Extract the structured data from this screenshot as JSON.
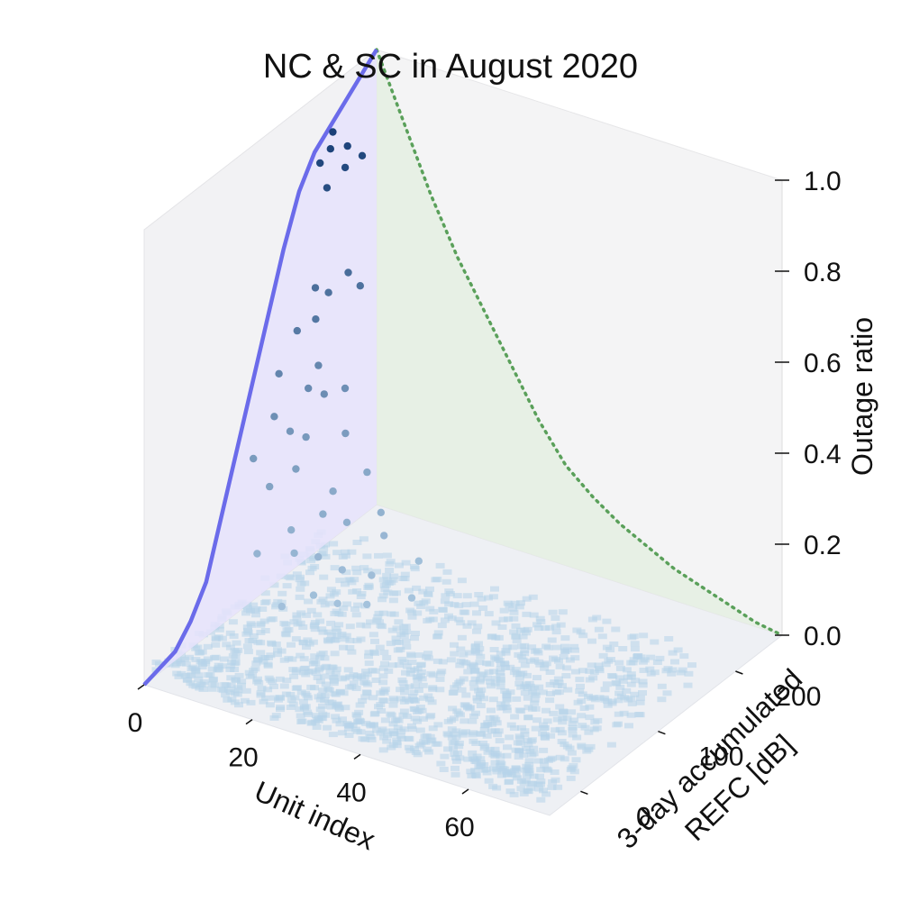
{
  "chart_data": {
    "type": "scatter",
    "projection": "3d",
    "title": "NC & SC in August 2020",
    "xlabel": "Unit index",
    "ylabel": "3-day accumulated REFC [dB]",
    "zlabel": "Outage ratio",
    "xlim": [
      0,
      75
    ],
    "ylim": [
      -40,
      260
    ],
    "zlim": [
      0,
      1
    ],
    "xticks": [
      "0",
      "20",
      "40",
      "60"
    ],
    "xtick_values": [
      0,
      20,
      40,
      60
    ],
    "yticks": [
      "0",
      "100",
      "200"
    ],
    "ytick_values": [
      0,
      100,
      200
    ],
    "zticks": [
      "0.0",
      "0.2",
      "0.4",
      "0.6",
      "0.8",
      "1.0"
    ],
    "ztick_values": [
      0,
      0.2,
      0.4,
      0.6,
      0.8,
      1.0
    ],
    "grid": false,
    "colormap": "Blues (by outage ratio)",
    "colors": {
      "x_projection_line": "#6b6bea",
      "x_projection_fill": "#e6e3fb",
      "y_projection_line": "#5aa05a",
      "y_projection_fill": "#e3efe1",
      "pane": "#f2f2f4",
      "floor": "#eef0f4",
      "scatter_low": "#b7d4ea",
      "scatter_high": "#08306b"
    },
    "series": [
      {
        "kind": "scatter",
        "points": [
          {
            "x": 0.5,
            "y": 200,
            "z": 0.9
          },
          {
            "x": 1.5,
            "y": 190,
            "z": 0.88
          },
          {
            "x": 2.5,
            "y": 205,
            "z": 0.87
          },
          {
            "x": 1.0,
            "y": 180,
            "z": 0.86
          },
          {
            "x": 3.5,
            "y": 195,
            "z": 0.84
          },
          {
            "x": 4.5,
            "y": 210,
            "z": 0.85
          },
          {
            "x": 3.0,
            "y": 175,
            "z": 0.82
          },
          {
            "x": 3.0,
            "y": 160,
            "z": 0.62
          },
          {
            "x": 4.0,
            "y": 170,
            "z": 0.6
          },
          {
            "x": 5.5,
            "y": 185,
            "z": 0.63
          },
          {
            "x": 7.0,
            "y": 190,
            "z": 0.6
          },
          {
            "x": 4.5,
            "y": 150,
            "z": 0.57
          },
          {
            "x": 2.5,
            "y": 140,
            "z": 0.55
          },
          {
            "x": 2.0,
            "y": 120,
            "z": 0.48
          },
          {
            "x": 5.0,
            "y": 150,
            "z": 0.47
          },
          {
            "x": 6.0,
            "y": 130,
            "z": 0.45
          },
          {
            "x": 7.5,
            "y": 140,
            "z": 0.43
          },
          {
            "x": 4.0,
            "y": 100,
            "z": 0.42
          },
          {
            "x": 8.5,
            "y": 160,
            "z": 0.42
          },
          {
            "x": 5.5,
            "y": 110,
            "z": 0.38
          },
          {
            "x": 7.0,
            "y": 120,
            "z": 0.36
          },
          {
            "x": 3.0,
            "y": 80,
            "z": 0.35
          },
          {
            "x": 10.0,
            "y": 150,
            "z": 0.34
          },
          {
            "x": 8.0,
            "y": 100,
            "z": 0.32
          },
          {
            "x": 6.0,
            "y": 80,
            "z": 0.3
          },
          {
            "x": 12.0,
            "y": 120,
            "z": 0.26
          },
          {
            "x": 14.0,
            "y": 150,
            "z": 0.27
          },
          {
            "x": 13.0,
            "y": 100,
            "z": 0.24
          },
          {
            "x": 10.0,
            "y": 80,
            "z": 0.22
          },
          {
            "x": 16.0,
            "y": 110,
            "z": 0.22
          },
          {
            "x": 18.0,
            "y": 140,
            "z": 0.21
          },
          {
            "x": 12.0,
            "y": 70,
            "z": 0.19
          },
          {
            "x": 15.0,
            "y": 80,
            "z": 0.18
          },
          {
            "x": 20.0,
            "y": 130,
            "z": 0.18
          },
          {
            "x": 8.0,
            "y": 50,
            "z": 0.2
          },
          {
            "x": 18.0,
            "y": 90,
            "z": 0.15
          },
          {
            "x": 22.0,
            "y": 100,
            "z": 0.14
          },
          {
            "x": 25.0,
            "y": 140,
            "z": 0.13
          },
          {
            "x": 17.0,
            "y": 60,
            "z": 0.13
          },
          {
            "x": 20.0,
            "y": 70,
            "z": 0.11
          },
          {
            "x": 24.0,
            "y": 80,
            "z": 0.11
          },
          {
            "x": 14.0,
            "y": 40,
            "z": 0.12
          },
          {
            "x": 28.0,
            "y": 110,
            "z": 0.1
          }
        ]
      },
      {
        "kind": "line",
        "name": "",
        "plane": "x-projection",
        "description_values": "max outage ratio vs REFC (projected on x=0 wall)",
        "y": [
          -40,
          -20,
          0,
          20,
          40,
          60,
          80,
          100,
          120,
          140,
          160,
          180,
          200,
          220,
          240,
          260
        ],
        "z": [
          0.0,
          0.01,
          0.02,
          0.06,
          0.12,
          0.24,
          0.36,
          0.48,
          0.6,
          0.72,
          0.82,
          0.88,
          0.91,
          0.94,
          0.97,
          1.0
        ]
      },
      {
        "kind": "line",
        "plane": "y-projection",
        "x": [
          0,
          5,
          10,
          15,
          20,
          25,
          30,
          35,
          40,
          45,
          50,
          55,
          60,
          65,
          70,
          75
        ],
        "z": [
          1.0,
          0.86,
          0.72,
          0.6,
          0.5,
          0.4,
          0.3,
          0.22,
          0.17,
          0.13,
          0.1,
          0.07,
          0.05,
          0.03,
          0.01,
          0.0
        ]
      }
    ]
  }
}
